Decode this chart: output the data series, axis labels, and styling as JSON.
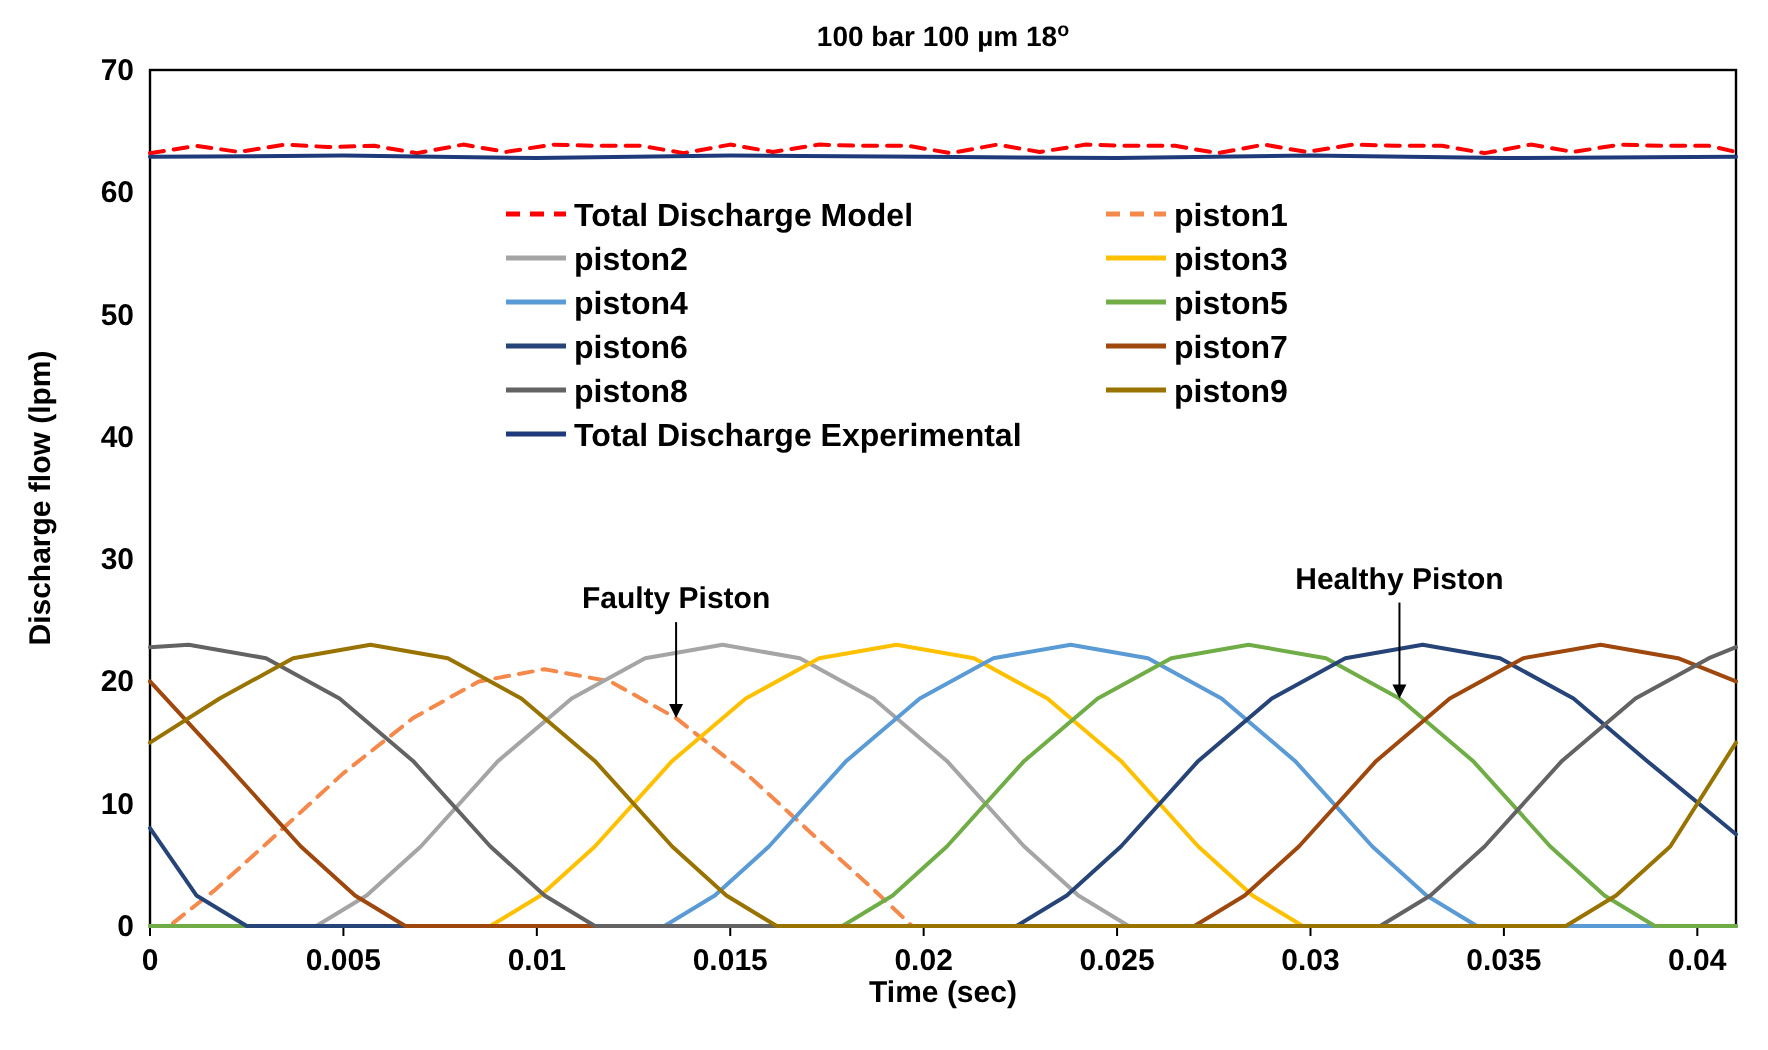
{
  "chart_data": {
    "type": "line",
    "title": "100 bar 100 µm 18$^{o}$",
    "xlabel": "Time (sec)",
    "ylabel": "Discharge flow (lpm)",
    "xlim": [
      0,
      0.041
    ],
    "xticks": [
      0,
      0.005,
      0.01,
      0.015,
      0.02,
      0.025,
      0.03,
      0.035,
      0.04
    ],
    "ylim": [
      0,
      70
    ],
    "yticks": [
      0,
      10,
      20,
      30,
      40,
      50,
      60,
      70
    ],
    "grid": false,
    "legend": "top",
    "marker": "none",
    "annotations": [
      {
        "text": "Faulty Piston",
        "x": 0.0136,
        "y": 17
      },
      {
        "text": "Healthy Piston",
        "x": 0.0323,
        "y": 18.6
      }
    ],
    "series": [
      {
        "name": "Total Discharge Model",
        "color": "#ff0000",
        "line_style": "dashed",
        "x": [
          0,
          0.0012,
          0.0023,
          0.0035,
          0.0046,
          0.0058,
          0.0069,
          0.0081,
          0.0092,
          0.0104,
          0.0115,
          0.0127,
          0.0138,
          0.015,
          0.0161,
          0.0173,
          0.0184,
          0.0196,
          0.0207,
          0.0219,
          0.023,
          0.0242,
          0.0253,
          0.0265,
          0.0276,
          0.0288,
          0.0299,
          0.0311,
          0.0322,
          0.0334,
          0.0345,
          0.0357,
          0.0368,
          0.038,
          0.0391,
          0.0403,
          0.041
        ],
        "values": [
          63.2,
          63.8,
          63.3,
          63.9,
          63.7,
          63.8,
          63.2,
          63.9,
          63.3,
          63.9,
          63.8,
          63.8,
          63.2,
          63.9,
          63.3,
          63.9,
          63.8,
          63.8,
          63.2,
          63.9,
          63.3,
          63.9,
          63.8,
          63.8,
          63.2,
          63.9,
          63.3,
          63.9,
          63.8,
          63.8,
          63.2,
          63.9,
          63.3,
          63.9,
          63.8,
          63.8,
          63.3
        ]
      },
      {
        "name": "piston1",
        "color": "#f4894b",
        "line_style": "dashed",
        "x": [
          0,
          0.0005,
          0.0017,
          0.0031,
          0.005,
          0.0068,
          0.0085,
          0.0102,
          0.0119,
          0.0136,
          0.0154,
          0.0173,
          0.0187,
          0.0197,
          0.041
        ],
        "values": [
          0,
          0,
          3,
          7,
          12.5,
          17,
          20,
          21,
          20,
          17,
          12.5,
          7,
          3,
          0,
          0
        ]
      },
      {
        "name": "piston2",
        "color": "#a5a5a5",
        "x": [
          0,
          0.0043,
          0.0056,
          0.007,
          0.009,
          0.0109,
          0.0128,
          0.0148,
          0.0168,
          0.0187,
          0.0206,
          0.0226,
          0.024,
          0.0253,
          0.041
        ],
        "values": [
          0,
          0,
          2.5,
          6.5,
          13.5,
          18.6,
          21.9,
          23,
          21.9,
          18.6,
          13.5,
          6.5,
          2.5,
          0,
          0
        ]
      },
      {
        "name": "piston3",
        "color": "#ffc000",
        "x": [
          0,
          0.0088,
          0.0101,
          0.0115,
          0.0135,
          0.0154,
          0.0173,
          0.0193,
          0.0213,
          0.0232,
          0.0251,
          0.0271,
          0.0285,
          0.0298,
          0.041
        ],
        "values": [
          0,
          0,
          2.5,
          6.5,
          13.5,
          18.6,
          21.9,
          23,
          21.9,
          18.6,
          13.5,
          6.5,
          2.5,
          0,
          0
        ]
      },
      {
        "name": "piston4",
        "color": "#5b9bd5",
        "x": [
          0,
          0.0133,
          0.0146,
          0.016,
          0.018,
          0.0199,
          0.0218,
          0.0238,
          0.0258,
          0.0277,
          0.0296,
          0.0316,
          0.033,
          0.0343,
          0.041
        ],
        "values": [
          0,
          0,
          2.5,
          6.5,
          13.5,
          18.6,
          21.9,
          23,
          21.9,
          18.6,
          13.5,
          6.5,
          2.5,
          0,
          0
        ]
      },
      {
        "name": "piston5",
        "color": "#70ad47",
        "x": [
          0,
          0.0179,
          0.0192,
          0.0206,
          0.0226,
          0.0245,
          0.0264,
          0.0284,
          0.0304,
          0.0323,
          0.0342,
          0.0362,
          0.0376,
          0.0389,
          0.041
        ],
        "values": [
          0,
          0,
          2.5,
          6.5,
          13.5,
          18.6,
          21.9,
          23,
          21.9,
          18.6,
          13.5,
          6.5,
          2.5,
          0,
          0
        ]
      },
      {
        "name": "piston6",
        "color": "#264478",
        "x": [
          0,
          0.0012,
          0.0025,
          0.0224,
          0.0237,
          0.0251,
          0.0271,
          0.029,
          0.0309,
          0.0329,
          0.0349,
          0.0368,
          0.0387,
          0.041
        ],
        "values": [
          8,
          2.5,
          0,
          0,
          2.5,
          6.5,
          13.5,
          18.6,
          21.9,
          23,
          21.9,
          18.6,
          13.5,
          7.5
        ]
      },
      {
        "name": "piston7",
        "color": "#9e480e",
        "x": [
          0,
          0.0019,
          0.0039,
          0.0053,
          0.0066,
          0.027,
          0.0283,
          0.0297,
          0.0317,
          0.0336,
          0.0355,
          0.0375,
          0.0395,
          0.041
        ],
        "values": [
          20,
          13.5,
          6.5,
          2.5,
          0,
          0,
          2.5,
          6.5,
          13.5,
          18.6,
          21.9,
          23,
          21.9,
          20
        ]
      },
      {
        "name": "piston8",
        "color": "#636363",
        "x": [
          0,
          0.001,
          0.003,
          0.0049,
          0.0068,
          0.0088,
          0.0102,
          0.0115,
          0.0318,
          0.0331,
          0.0345,
          0.0365,
          0.0384,
          0.0403,
          0.041
        ],
        "values": [
          22.8,
          23,
          21.9,
          18.6,
          13.5,
          6.5,
          2.5,
          0,
          0,
          2.5,
          6.5,
          13.5,
          18.6,
          21.9,
          22.8
        ]
      },
      {
        "name": "piston9",
        "color": "#997300",
        "x": [
          0,
          0.0018,
          0.0037,
          0.0057,
          0.0077,
          0.0096,
          0.0115,
          0.0135,
          0.0149,
          0.0162,
          0.0366,
          0.0379,
          0.0393,
          0.041
        ],
        "values": [
          15,
          18.6,
          21.9,
          23,
          21.9,
          18.6,
          13.5,
          6.5,
          2.5,
          0,
          0,
          2.5,
          6.5,
          15
        ]
      },
      {
        "name": "Total Discharge Experimental",
        "color": "#1f3a7a",
        "x": [
          0,
          0.005,
          0.01,
          0.015,
          0.02,
          0.025,
          0.03,
          0.035,
          0.041
        ],
        "values": [
          62.9,
          63,
          62.8,
          63,
          62.9,
          62.8,
          63,
          62.8,
          62.9
        ]
      }
    ]
  }
}
